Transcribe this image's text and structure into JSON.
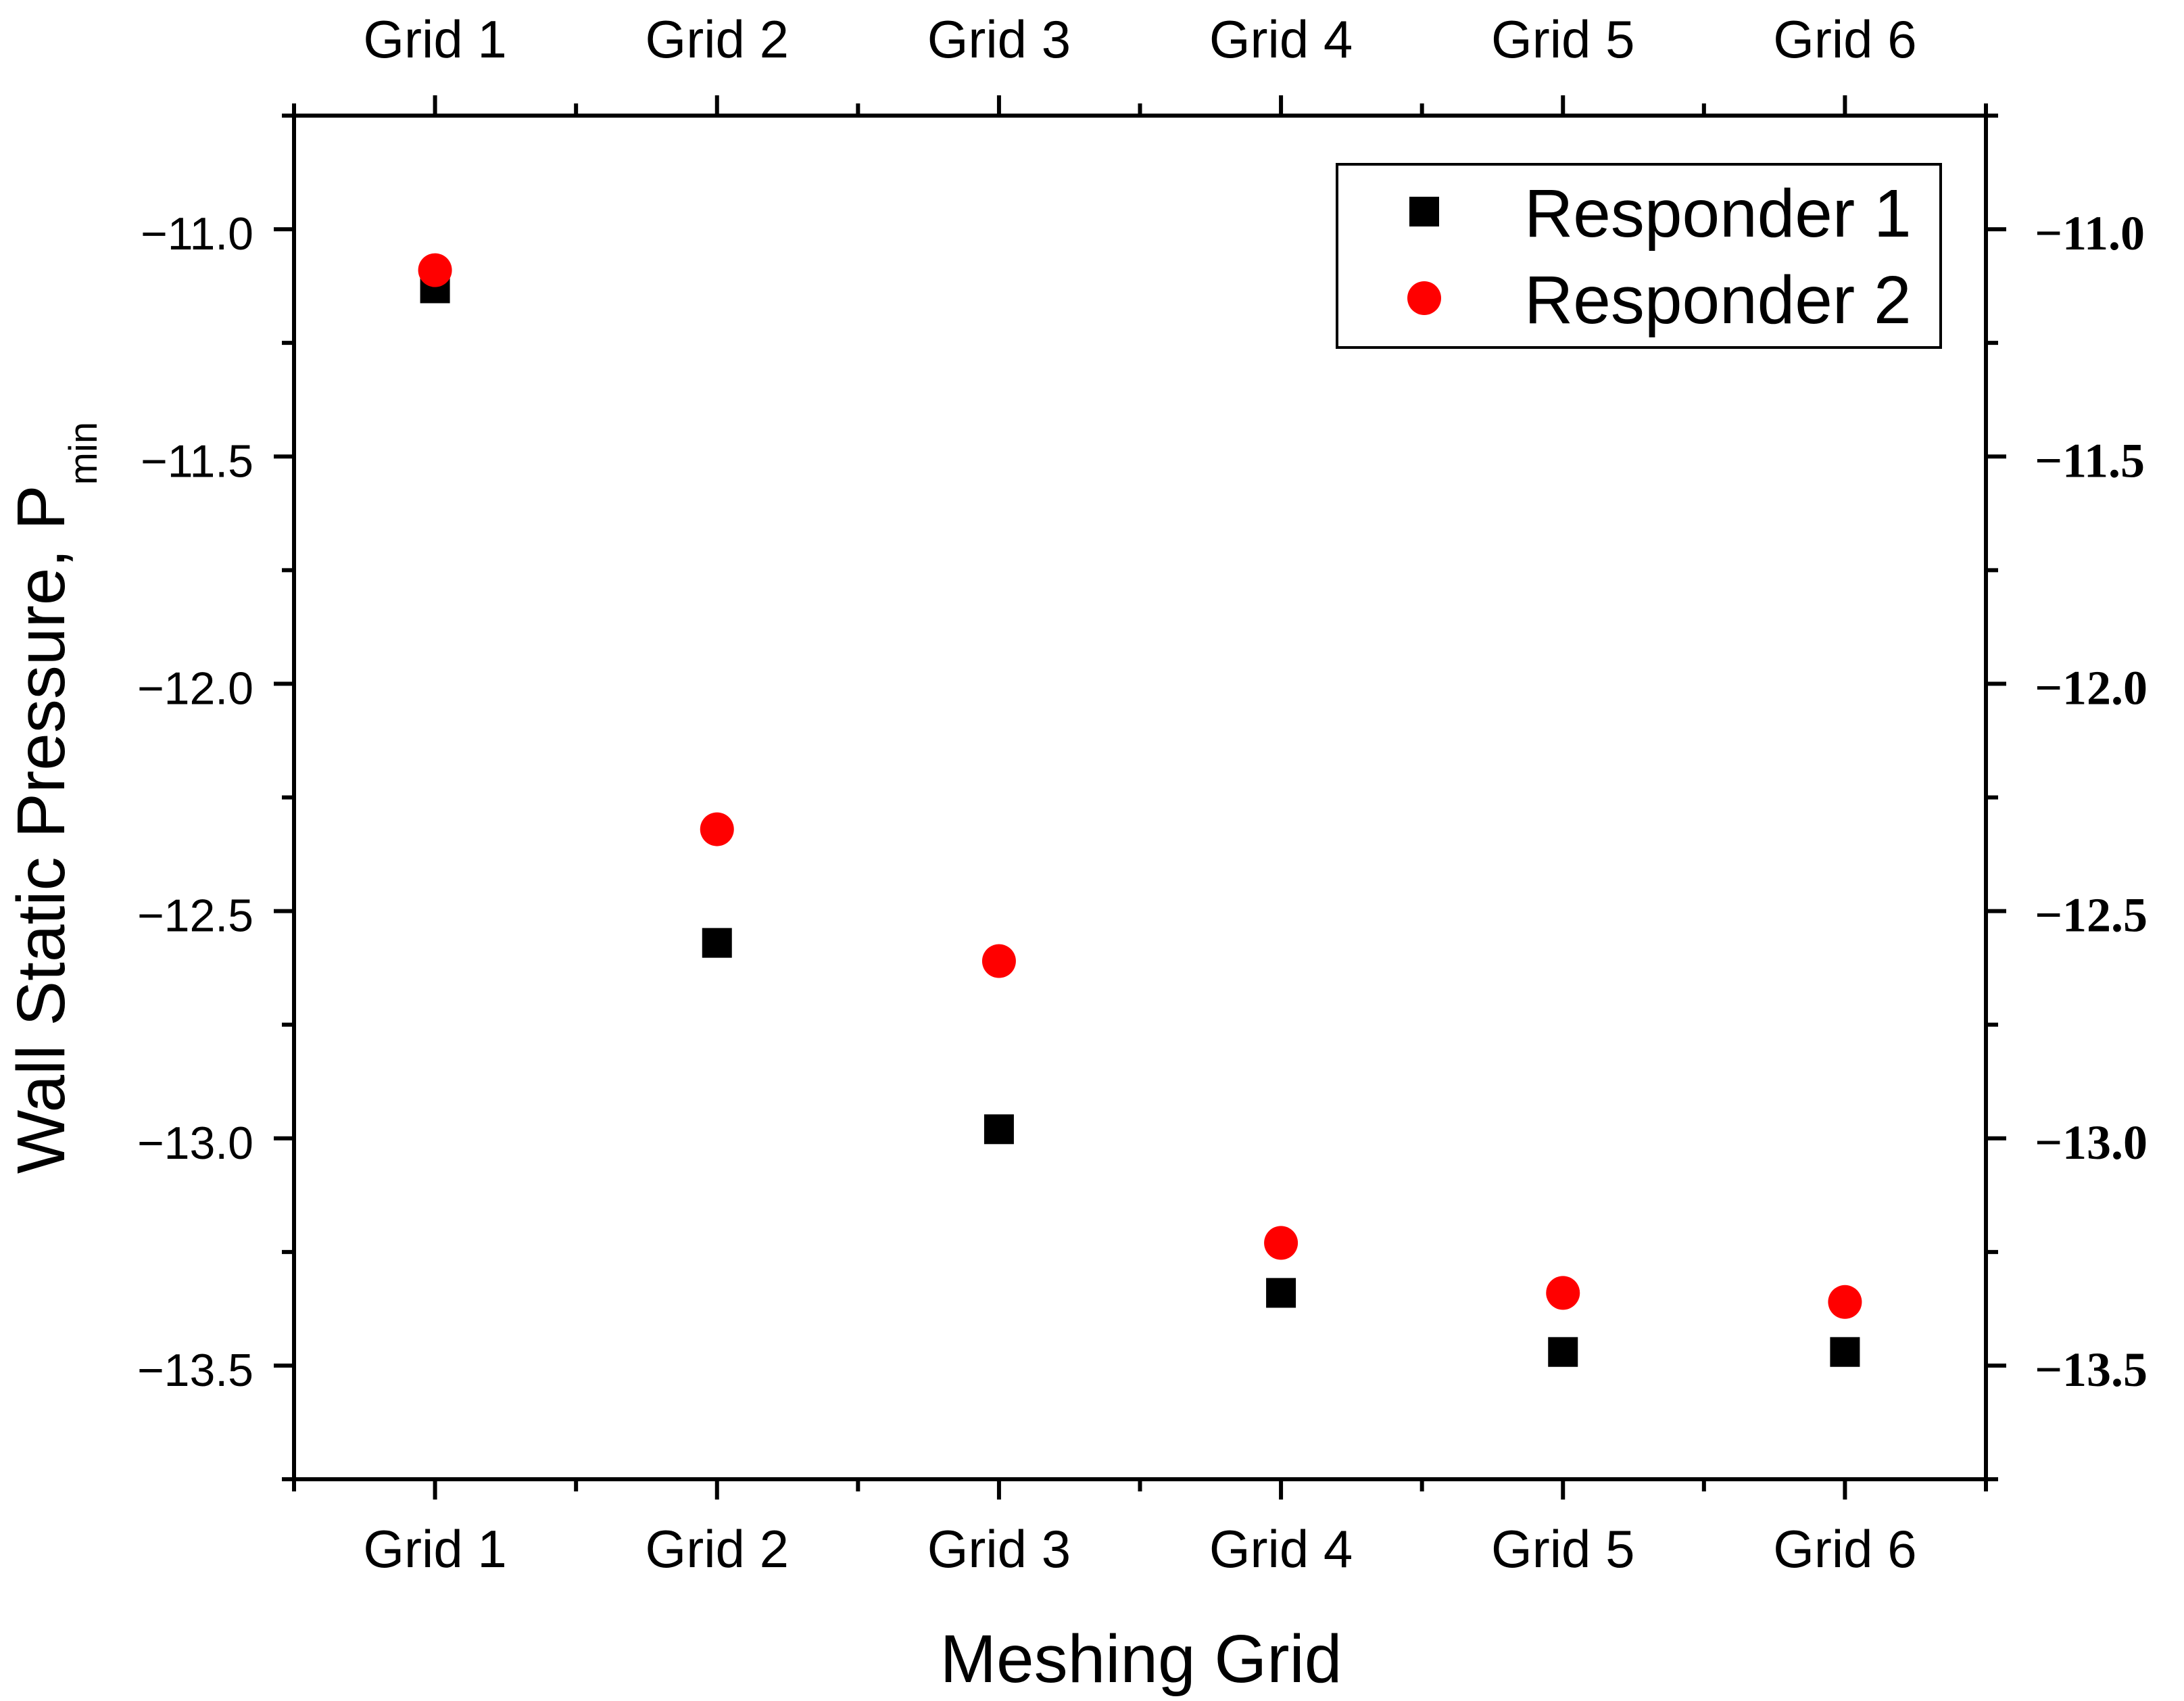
{
  "chart_data": {
    "type": "scatter",
    "title": "",
    "xlabel": "Meshing Grid",
    "ylabel_main": "Wall Static Pressure, P",
    "ylabel_sub": "min",
    "categories": [
      "Grid 1",
      "Grid 2",
      "Grid 3",
      "Grid 4",
      "Grid 5",
      "Grid 6"
    ],
    "ylim": [
      -13.75,
      -10.75
    ],
    "yticks": [
      -11.0,
      -11.5,
      -12.0,
      -12.5,
      -13.0,
      -13.5
    ],
    "ytick_labels": [
      "−11.0",
      "−11.5",
      "−12.0",
      "−12.5",
      "−13.0",
      "−13.5"
    ],
    "series": [
      {
        "name": "Responder 1",
        "marker": "square",
        "color": "#000000",
        "values": [
          -11.13,
          -12.57,
          -12.98,
          -13.34,
          -13.47,
          -13.47
        ]
      },
      {
        "name": "Responder 2",
        "marker": "circle",
        "color": "#ff0000",
        "values": [
          -11.09,
          -12.32,
          -12.61,
          -13.23,
          -13.34,
          -13.36
        ]
      }
    ],
    "legend_position": "top-right",
    "grid": false
  }
}
